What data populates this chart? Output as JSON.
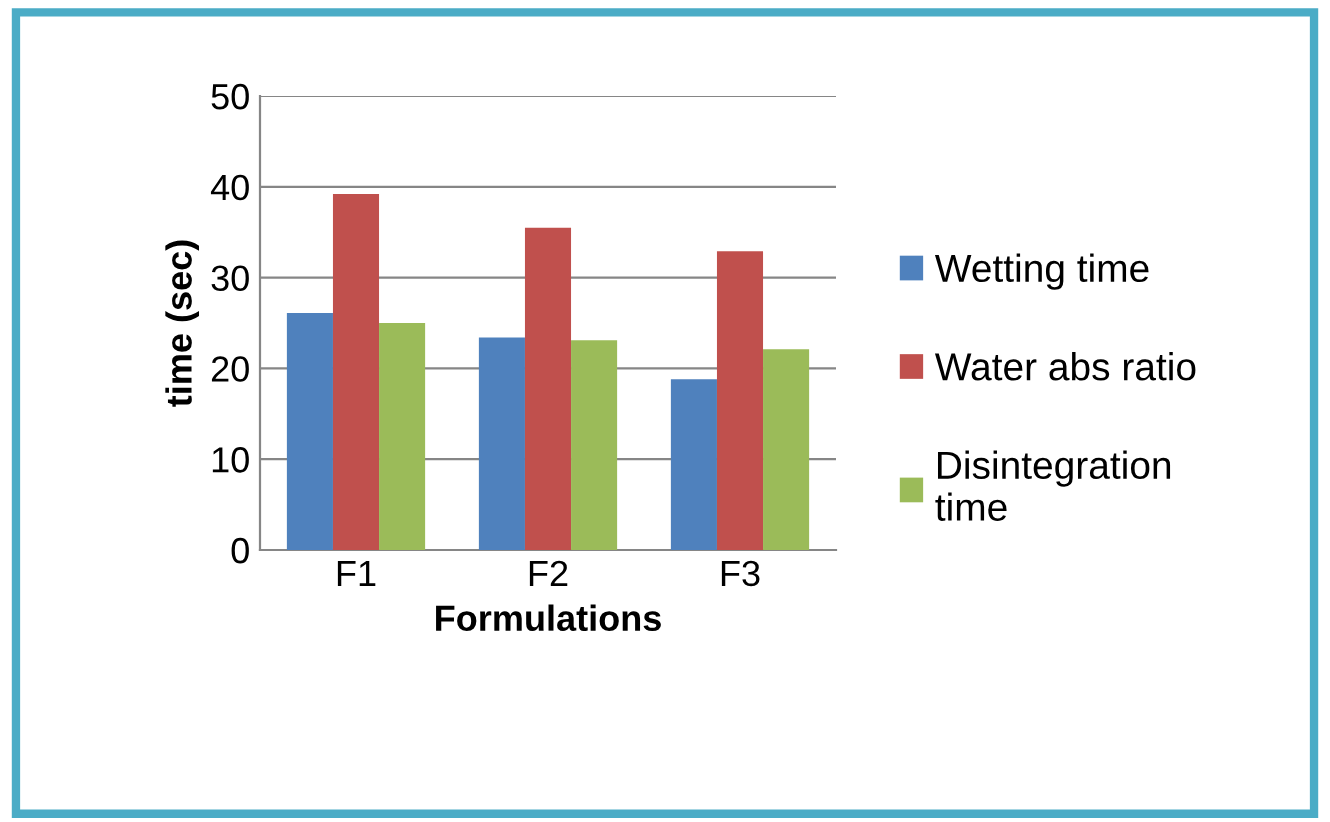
{
  "chart_data": {
    "type": "bar",
    "xlabel": "Formulations",
    "ylabel": "time (sec)",
    "categories": [
      "F1",
      "F2",
      "F3"
    ],
    "series": [
      {
        "name": "Wetting time",
        "color": "#4f81bd",
        "values": [
          26.1,
          23.4,
          18.8
        ]
      },
      {
        "name": "Water abs ratio",
        "color": "#c0504d",
        "values": [
          39.2,
          35.5,
          32.9
        ]
      },
      {
        "name": "Disintegration\ntime",
        "color": "#9bbb59",
        "values": [
          25.0,
          23.1,
          22.1
        ]
      }
    ],
    "ylim": [
      0,
      50
    ],
    "yticks": [
      0,
      10,
      20,
      30,
      40,
      50
    ],
    "grid": "y",
    "legend": "right"
  }
}
